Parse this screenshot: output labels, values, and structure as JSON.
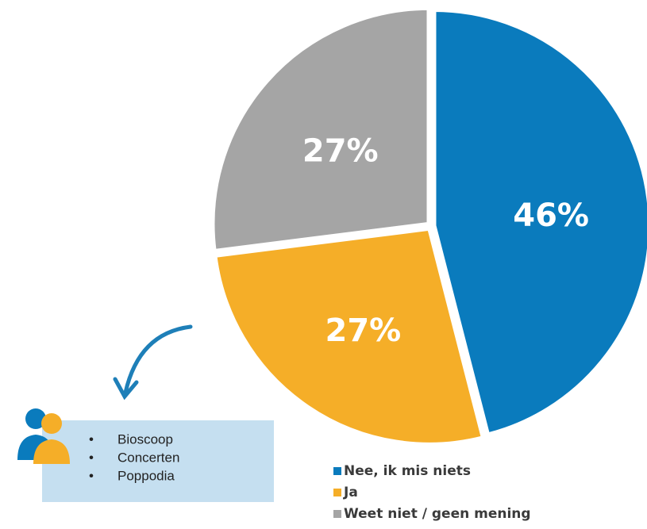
{
  "chart_data": {
    "type": "pie",
    "categories": [
      "Nee, ik mis niets",
      "Ja",
      "Weet niet / geen mening"
    ],
    "values": [
      46,
      27,
      27
    ],
    "value_labels": [
      "46%",
      "27%",
      "27%"
    ],
    "colors": [
      "#0a7bbd",
      "#f5ae28",
      "#a5a5a5"
    ]
  },
  "callout": {
    "items": [
      "Bioscoop",
      "Concerten",
      "Poppodia"
    ]
  }
}
